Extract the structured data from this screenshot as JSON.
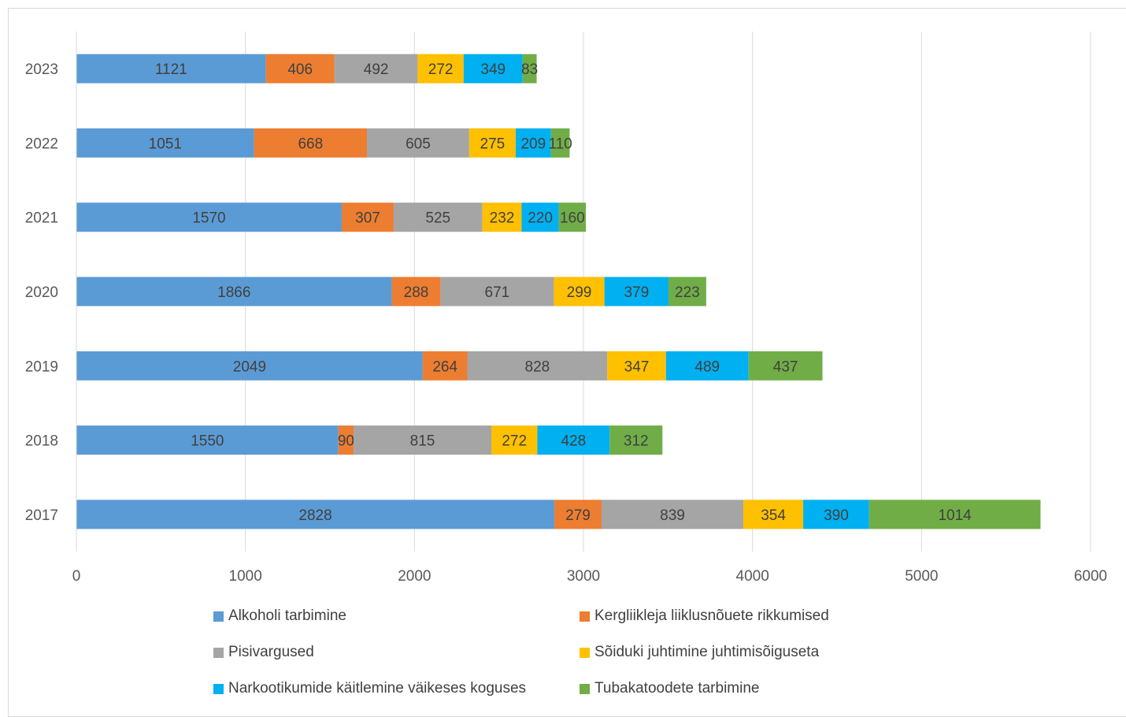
{
  "chart_data": {
    "type": "bar",
    "orientation": "horizontal",
    "stacked": true,
    "categories": [
      "2023",
      "2022",
      "2021",
      "2020",
      "2019",
      "2018",
      "2017"
    ],
    "series": [
      {
        "name": "Alkoholi tarbimine",
        "color": "#5B9BD5",
        "values": [
          1121,
          1051,
          1570,
          1866,
          2049,
          1550,
          2828
        ]
      },
      {
        "name": "Kergliikleja liiklusnõuete rikkumised",
        "color": "#ED7D31",
        "values": [
          406,
          668,
          307,
          288,
          264,
          90,
          279
        ]
      },
      {
        "name": "Pisivargused",
        "color": "#A5A5A5",
        "values": [
          492,
          605,
          525,
          671,
          828,
          815,
          839
        ]
      },
      {
        "name": "Sõiduki juhtimine juhtimisõiguseta",
        "color": "#FFC000",
        "values": [
          272,
          275,
          232,
          299,
          347,
          272,
          354
        ]
      },
      {
        "name": "Narkootikumide käitlemine väikeses koguses",
        "color": "#00B0F0",
        "values": [
          349,
          209,
          220,
          379,
          489,
          428,
          390
        ]
      },
      {
        "name": "Tubakatoodete tarbimine",
        "color": "#70AD47",
        "values": [
          83,
          110,
          160,
          223,
          437,
          312,
          1014
        ]
      }
    ],
    "xlim": [
      0,
      6000
    ],
    "x_ticks": [
      "0",
      "1000",
      "2000",
      "3000",
      "4000",
      "5000",
      "6000"
    ],
    "grid": true,
    "legend_position": "bottom",
    "title": "",
    "xlabel": "",
    "ylabel": ""
  }
}
